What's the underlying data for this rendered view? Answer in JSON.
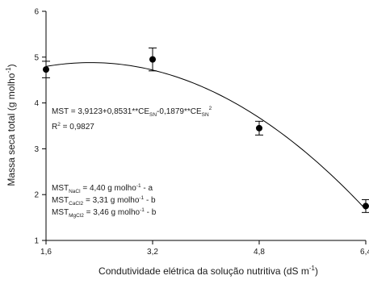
{
  "chart_data": {
    "type": "scatter",
    "title": "",
    "xlabel": "Condutividade elétrica da solução nutritiva (dS m",
    "xlabel_sup": "-1",
    "xlabel_end": ")",
    "ylabel": "Massa seca total (g molho",
    "ylabel_sup": "-1",
    "ylabel_end": ")",
    "xlim": [
      1.6,
      6.4
    ],
    "ylim": [
      1,
      6
    ],
    "xticks": [
      "1,6",
      "3,2",
      "4,8",
      "6,4"
    ],
    "xtick_values": [
      1.6,
      3.2,
      4.8,
      6.4
    ],
    "yticks": [
      "1",
      "2",
      "3",
      "4",
      "5",
      "6"
    ],
    "ytick_values": [
      1,
      2,
      3,
      4,
      5,
      6
    ],
    "grid": false,
    "series": [
      {
        "x": [
          1.6,
          3.2,
          4.8,
          6.4
        ],
        "y": [
          4.73,
          4.95,
          3.45,
          1.75
        ],
        "error": [
          0.18,
          0.25,
          0.15,
          0.14
        ],
        "color": "#000000"
      }
    ],
    "fit": {
      "type": "quadratic",
      "a": 3.9123,
      "b": 0.8531,
      "c": -0.1879,
      "color": "#000000"
    },
    "annotations": {
      "equation": {
        "prefix": "MST = 3,9123+0,8531**CE",
        "sub1": "SN",
        "middle": "-0,1879**CE",
        "sub2": "SN",
        "sup": "2"
      },
      "r2": {
        "prefix": "R",
        "sup": "2",
        "rest": " = 0,9827"
      },
      "mst_lines": [
        {
          "base": "MST",
          "sub": "NaCl",
          "text": " = 4,40 g molho",
          "sup": "-1",
          "end": " - a"
        },
        {
          "base": "MST",
          "sub": "CaCl2",
          "text": " = 3,31 g molho",
          "sup": "-1",
          "end": " - b"
        },
        {
          "base": "MST",
          "sub": "MgCl2",
          "text": " = 3,46 g molho",
          "sup": "-1",
          "end": " - b"
        }
      ]
    }
  }
}
